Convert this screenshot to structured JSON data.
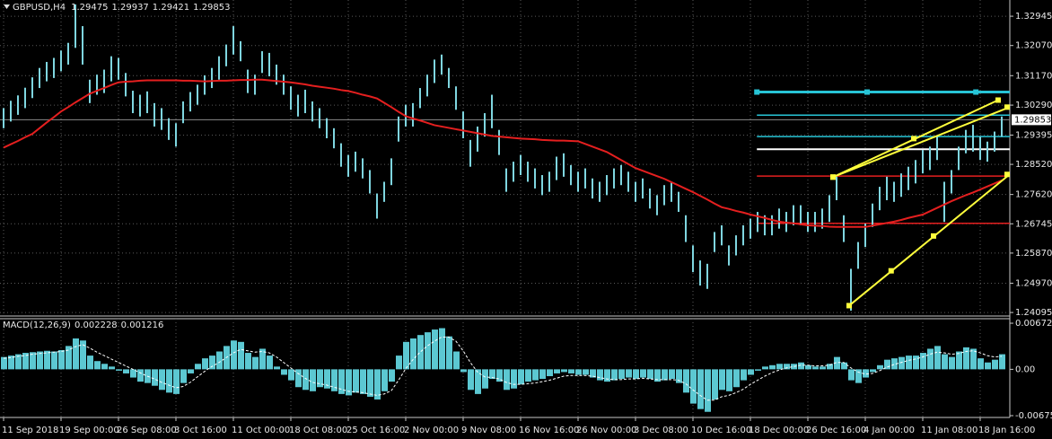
{
  "chart_data": {
    "type": "ohlc",
    "symbol": "GBPUSD,H4",
    "ohlc": [
      1.29475,
      1.29937,
      1.29421,
      1.29853
    ],
    "bar_color": "#7fd6e0",
    "grid": true,
    "categories": [
      "11 Sep 2018",
      null,
      null,
      null,
      null,
      null,
      null,
      null,
      "19 Sep 00:00",
      null,
      null,
      null,
      null,
      null,
      null,
      null,
      "26 Sep 08:00",
      null,
      null,
      null,
      null,
      null,
      null,
      null,
      "3 Oct 16:00",
      null,
      null,
      null,
      null,
      null,
      null,
      null,
      "11 Oct 00:00",
      null,
      null,
      null,
      null,
      null,
      null,
      null,
      "18 Oct 08:00",
      null,
      null,
      null,
      null,
      null,
      null,
      null,
      "25 Oct 16:00",
      null,
      null,
      null,
      null,
      null,
      null,
      null,
      "2 Nov 00:00",
      null,
      null,
      null,
      null,
      null,
      null,
      null,
      "9 Nov 08:00",
      null,
      null,
      null,
      null,
      null,
      null,
      null,
      "16 Nov 16:00",
      null,
      null,
      null,
      null,
      null,
      null,
      null,
      "26 Nov 00:00",
      null,
      null,
      null,
      null,
      null,
      null,
      null,
      "3 Dec 08:00",
      null,
      null,
      null,
      null,
      null,
      null,
      null,
      "10 Dec 16:00",
      null,
      null,
      null,
      null,
      null,
      null,
      null,
      "18 Dec 00:00",
      null,
      null,
      null,
      null,
      null,
      null,
      null,
      "26 Dec 16:00",
      null,
      null,
      null,
      null,
      null,
      null,
      null,
      "4 Jan 00:00",
      null,
      null,
      null,
      null,
      null,
      null,
      null,
      "11 Jan 08:00",
      null,
      null,
      null,
      null,
      null,
      null,
      null,
      "18 Jan 16:00",
      null,
      null,
      null
    ],
    "high": [
      1.302,
      1.3042,
      1.3058,
      1.3081,
      1.3112,
      1.314,
      1.3158,
      1.317,
      1.3192,
      1.3215,
      1.333,
      1.3265,
      1.3105,
      1.312,
      1.3135,
      1.3175,
      1.317,
      1.3125,
      1.3072,
      1.306,
      1.307,
      1.3035,
      1.302,
      1.299,
      1.2975,
      1.304,
      1.3068,
      1.309,
      1.3118,
      1.314,
      1.3175,
      1.321,
      1.3265,
      1.322,
      1.3135,
      1.312,
      1.319,
      1.3185,
      1.315,
      1.312,
      1.3085,
      1.306,
      1.3075,
      1.304,
      1.302,
      1.299,
      1.296,
      1.2915,
      1.288,
      1.289,
      1.287,
      1.2835,
      1.2765,
      1.28,
      1.287,
      1.2995,
      1.303,
      1.3035,
      1.308,
      1.312,
      1.3165,
      1.318,
      1.314,
      1.3085,
      1.301,
      1.2925,
      1.2965,
      1.3005,
      1.306,
      1.2955,
      1.284,
      1.286,
      1.288,
      1.286,
      1.284,
      1.282,
      1.283,
      1.2875,
      1.2885,
      1.285,
      1.283,
      1.284,
      1.281,
      1.28,
      1.282,
      1.284,
      1.285,
      1.283,
      1.28,
      1.281,
      1.278,
      1.276,
      1.279,
      1.28,
      1.277,
      1.27,
      1.261,
      1.2565,
      1.2555,
      1.265,
      1.267,
      1.261,
      1.264,
      1.267,
      1.269,
      1.271,
      1.27,
      1.27,
      1.272,
      1.271,
      1.273,
      1.273,
      1.271,
      1.271,
      1.272,
      1.276,
      1.2815,
      1.27,
      1.254,
      1.262,
      1.2675,
      1.2735,
      1.2785,
      1.2815,
      1.28,
      1.2825,
      1.2845,
      1.2865,
      1.2895,
      1.2905,
      1.2935,
      1.28,
      1.2835,
      1.2905,
      1.2955,
      1.297,
      1.2935,
      1.292,
      1.295,
      1.2995
    ],
    "low": [
      1.296,
      1.298,
      1.3,
      1.302,
      1.305,
      1.308,
      1.31,
      1.311,
      1.313,
      1.315,
      1.32,
      1.315,
      1.3035,
      1.306,
      1.3065,
      1.31,
      1.3105,
      1.3055,
      1.3005,
      1.2995,
      1.3005,
      1.2965,
      1.2955,
      1.2925,
      1.2905,
      1.2975,
      1.301,
      1.303,
      1.306,
      1.308,
      1.3105,
      1.3145,
      1.318,
      1.316,
      1.3065,
      1.306,
      1.3125,
      1.3115,
      1.309,
      1.306,
      1.3015,
      1.2995,
      1.3005,
      1.298,
      1.296,
      1.293,
      1.29,
      1.2845,
      1.2815,
      1.283,
      1.281,
      1.2765,
      1.269,
      1.274,
      1.279,
      1.292,
      1.2965,
      1.2965,
      1.302,
      1.3055,
      1.3095,
      1.312,
      1.308,
      1.3015,
      1.293,
      1.2845,
      1.289,
      1.2935,
      1.296,
      1.288,
      1.277,
      1.28,
      1.282,
      1.28,
      1.278,
      1.276,
      1.277,
      1.2805,
      1.2815,
      1.279,
      1.277,
      1.278,
      1.275,
      1.274,
      1.276,
      1.278,
      1.279,
      1.277,
      1.274,
      1.275,
      1.272,
      1.27,
      1.273,
      1.274,
      1.271,
      1.262,
      1.253,
      1.249,
      1.248,
      1.259,
      1.261,
      1.255,
      1.258,
      1.261,
      1.263,
      1.265,
      1.264,
      1.264,
      1.266,
      1.265,
      1.267,
      1.267,
      1.265,
      1.265,
      1.266,
      1.268,
      1.2745,
      1.262,
      1.2415,
      1.254,
      1.2605,
      1.2665,
      1.2715,
      1.2745,
      1.274,
      1.2755,
      1.2775,
      1.2795,
      1.2825,
      1.2835,
      1.2865,
      1.268,
      1.2765,
      1.2835,
      1.2885,
      1.289,
      1.2865,
      1.286,
      1.289,
      1.2935
    ],
    "ma": {
      "color": "#e41f1f",
      "values": [
        1.2902,
        1.2912,
        1.2922,
        1.2933,
        1.2943,
        1.296,
        1.2977,
        1.2993,
        1.301,
        1.3023,
        1.3037,
        1.305,
        1.3063,
        1.3072,
        1.308,
        1.3089,
        1.3097,
        1.3099,
        1.31,
        1.3102,
        1.3103,
        1.3103,
        1.3103,
        1.3103,
        1.3103,
        1.3102,
        1.3102,
        1.3101,
        1.31,
        1.3101,
        1.3102,
        1.3102,
        1.3103,
        1.3104,
        1.3104,
        1.3105,
        1.3105,
        1.3103,
        1.3101,
        1.3099,
        1.3097,
        1.3094,
        1.3091,
        1.3087,
        1.3084,
        1.3081,
        1.3078,
        1.3074,
        1.3071,
        1.3066,
        1.306,
        1.3055,
        1.3049,
        1.3036,
        1.3023,
        1.3009,
        1.2996,
        1.2989,
        1.2983,
        1.2976,
        1.2969,
        1.2965,
        1.2961,
        1.2957,
        1.2953,
        1.2949,
        1.2945,
        1.2941,
        1.2937,
        1.2935,
        1.2933,
        1.2931,
        1.2929,
        1.2928,
        1.2927,
        1.2925,
        1.2924,
        1.2923,
        1.2923,
        1.2922,
        1.2921,
        1.2913,
        1.2905,
        1.2897,
        1.2889,
        1.2877,
        1.2865,
        1.2853,
        1.2841,
        1.2833,
        1.2825,
        1.2817,
        1.2809,
        1.2799,
        1.2789,
        1.2779,
        1.2769,
        1.2758,
        1.2747,
        1.2735,
        1.2724,
        1.2719,
        1.2713,
        1.2708,
        1.2702,
        1.2697,
        1.2692,
        1.2686,
        1.2681,
        1.2678,
        1.2676,
        1.2673,
        1.267,
        1.2669,
        1.2668,
        1.2666,
        1.2665,
        1.2665,
        1.2665,
        1.2665,
        1.2665,
        1.2669,
        1.2673,
        1.2677,
        1.2681,
        1.2686,
        1.2692,
        1.2697,
        1.2702,
        1.2712,
        1.2722,
        1.2732,
        1.2742,
        1.2751,
        1.276,
        1.2768,
        1.2777,
        1.2786,
        1.2795,
        1.2804
      ]
    },
    "ylim": [
      1.2399,
      1.3343
    ],
    "yticks": [
      1.32945,
      {
        "value": 1.3207,
        "label": "1.32070"
      },
      {
        "value": 1.3117,
        "label": "1.31170"
      },
      {
        "value": 1.3029,
        "label": "1.30290"
      },
      1.29395,
      {
        "value": 1.2852,
        "label": "1.28520"
      },
      {
        "value": 1.2762,
        "label": "1.27620"
      },
      1.26745,
      {
        "value": 1.2587,
        "label": "1.25870"
      },
      {
        "value": 1.2497,
        "label": "1.24970"
      },
      1.24095
    ],
    "levels": [
      {
        "price": 1.3068,
        "color": "#27c4d6",
        "from": 104.9,
        "handles": [
          104.9,
          120.25,
          135.4
        ]
      },
      {
        "price": 1.2999,
        "color": "#27c4d6",
        "from": 104.9
      },
      {
        "price": 1.2935,
        "color": "#27c4d6",
        "from": 104.9
      },
      {
        "price": 1.2897,
        "color": "#ffffff",
        "from": 104.9
      },
      {
        "price": 1.2817,
        "color": "#e41f1f",
        "from": 104.9
      },
      {
        "price": 1.2676,
        "color": "#e41f1f",
        "from": 104.9
      }
    ],
    "trendlines": [
      {
        "color": "#ffff3c",
        "points": [
          {
            "x": 115.5,
            "y": 1.2814
          },
          {
            "x": 126.75,
            "y": 1.2929
          },
          {
            "x": 138.5,
            "y": 1.3044
          }
        ]
      },
      {
        "color": "#ffff3c",
        "points": [
          {
            "x": 115.5,
            "y": 1.2814
          },
          {
            "x": 140.1,
            "y": 1.3023
          }
        ]
      },
      {
        "color": "#ffff3c",
        "points": [
          {
            "x": 117.75,
            "y": 1.243
          },
          {
            "x": 123.6,
            "y": 1.2534
          },
          {
            "x": 129.5,
            "y": 1.2638
          },
          {
            "x": 140.1,
            "y": 1.2822
          }
        ]
      }
    ],
    "indicator": {
      "name": "MACD(12,26,9)",
      "readings": [
        0.002228,
        0.001216
      ],
      "color": "#5cc8d2",
      "signal_color": "#ffffff",
      "ylim": [
        -0.00702,
        0.00738
      ],
      "yticks": [
        0.006722,
        {
          "value": 0,
          "label": "0.00"
        },
        -0.006756
      ],
      "histogram": [
        0.0018,
        0.002,
        0.0022,
        0.0024,
        0.0025,
        0.0026,
        0.0027,
        0.0026,
        0.0028,
        0.0034,
        0.0045,
        0.0042,
        0.002,
        0.0012,
        0.0008,
        0.0004,
        -0.0002,
        -0.0006,
        -0.0012,
        -0.0018,
        -0.002,
        -0.0024,
        -0.003,
        -0.0034,
        -0.0036,
        -0.002,
        -0.0006,
        0.0008,
        0.0016,
        0.002,
        0.0026,
        0.0034,
        0.0042,
        0.004,
        0.0024,
        0.0018,
        0.003,
        0.002,
        0.0004,
        -0.0008,
        -0.0016,
        -0.0026,
        -0.003,
        -0.0032,
        -0.0026,
        -0.0028,
        -0.0032,
        -0.0036,
        -0.0038,
        -0.0034,
        -0.0036,
        -0.004,
        -0.0044,
        -0.0032,
        -0.0018,
        0.002,
        0.004,
        0.0045,
        0.005,
        0.0054,
        0.0058,
        0.006,
        0.0048,
        0.0026,
        -0.0004,
        -0.003,
        -0.0036,
        -0.0028,
        -0.0014,
        -0.0018,
        -0.003,
        -0.0028,
        -0.0022,
        -0.0018,
        -0.0016,
        -0.0014,
        -0.001,
        -0.0006,
        -0.0004,
        -0.0006,
        -0.0008,
        -0.0008,
        -0.0012,
        -0.0016,
        -0.0018,
        -0.0016,
        -0.0014,
        -0.0012,
        -0.0014,
        -0.0012,
        -0.0014,
        -0.0018,
        -0.0016,
        -0.0014,
        -0.002,
        -0.0034,
        -0.005,
        -0.0058,
        -0.0062,
        -0.0044,
        -0.003,
        -0.0032,
        -0.0026,
        -0.0016,
        -0.0008,
        -0.0002,
        0.0004,
        0.0006,
        0.0008,
        0.0008,
        0.0008,
        0.001,
        0.0006,
        0.0004,
        0.0004,
        0.0008,
        0.0018,
        0.001,
        -0.0016,
        -0.002,
        -0.0012,
        -0.0004,
        0.0006,
        0.0014,
        0.0016,
        0.0018,
        0.002,
        0.002,
        0.0024,
        0.003,
        0.0034,
        0.0022,
        0.0018,
        0.0026,
        0.0032,
        0.003,
        0.0016,
        0.001,
        0.0014,
        0.0022
      ],
      "signal": [
        0.0016,
        0.0017,
        0.0019,
        0.002,
        0.0022,
        0.0023,
        0.0024,
        0.0025,
        0.0026,
        0.0028,
        0.0033,
        0.0036,
        0.0031,
        0.0025,
        0.002,
        0.0015,
        0.001,
        0.0005,
        0.0,
        -0.0005,
        -0.001,
        -0.0014,
        -0.0019,
        -0.0023,
        -0.0027,
        -0.0025,
        -0.0019,
        -0.0011,
        -0.0003,
        0.0004,
        0.001,
        0.0017,
        0.0024,
        0.0029,
        0.0027,
        0.0025,
        0.0026,
        0.0024,
        0.0018,
        0.001,
        0.0002,
        -0.0006,
        -0.0013,
        -0.0019,
        -0.0021,
        -0.0023,
        -0.0026,
        -0.0029,
        -0.0032,
        -0.0033,
        -0.0034,
        -0.0036,
        -0.0038,
        -0.0036,
        -0.0031,
        -0.0016,
        0.0001,
        0.0014,
        0.0025,
        0.0034,
        0.0041,
        0.0047,
        0.0047,
        0.0041,
        0.0027,
        0.001,
        -0.0004,
        -0.0011,
        -0.0012,
        -0.0014,
        -0.0019,
        -0.0022,
        -0.0022,
        -0.0021,
        -0.002,
        -0.0018,
        -0.0016,
        -0.0013,
        -0.001,
        -0.0009,
        -0.0009,
        -0.0009,
        -0.001,
        -0.0012,
        -0.0014,
        -0.0015,
        -0.0015,
        -0.0014,
        -0.0014,
        -0.0013,
        -0.0014,
        -0.0015,
        -0.0015,
        -0.0015,
        -0.0016,
        -0.0021,
        -0.003,
        -0.0038,
        -0.0045,
        -0.0045,
        -0.004,
        -0.0038,
        -0.0034,
        -0.0029,
        -0.0022,
        -0.0016,
        -0.001,
        -0.0005,
        -0.0001,
        0.0002,
        0.0004,
        0.0006,
        0.0006,
        0.0005,
        0.0005,
        0.0006,
        0.001,
        0.001,
        0.0002,
        -0.0004,
        -0.0007,
        -0.0006,
        -0.0002,
        0.0003,
        0.0007,
        0.001,
        0.0013,
        0.0015,
        0.0018,
        0.0022,
        0.0025,
        0.0024,
        0.0022,
        0.0023,
        0.0026,
        0.0027,
        0.0024,
        0.002,
        0.0018,
        0.0019
      ]
    }
  }
}
